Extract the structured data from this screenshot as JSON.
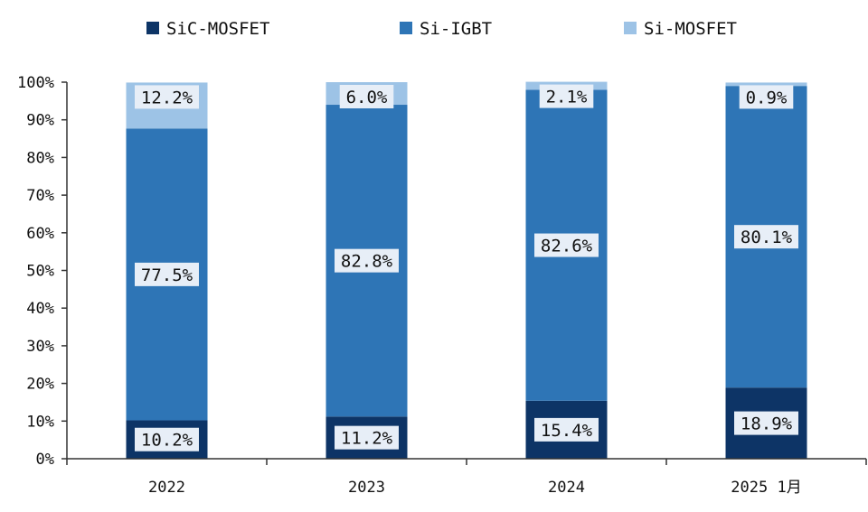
{
  "chart_data": {
    "type": "bar",
    "stacked": true,
    "categories": [
      "2022",
      "2023",
      "2024",
      "2025 1月"
    ],
    "series": [
      {
        "name": "SiC-MOSFET",
        "color": "#0d3466",
        "values": [
          10.2,
          11.2,
          15.4,
          18.9
        ],
        "labels": [
          "10.2%",
          "11.2%",
          "15.4%",
          "18.9%"
        ]
      },
      {
        "name": "Si-IGBT",
        "color": "#2e75b6",
        "values": [
          77.5,
          82.8,
          82.6,
          80.1
        ],
        "labels": [
          "77.5%",
          "82.8%",
          "82.6%",
          "80.1%"
        ]
      },
      {
        "name": "Si-MOSFET",
        "color": "#9dc3e6",
        "values": [
          12.2,
          6.0,
          2.1,
          0.9
        ],
        "labels": [
          "12.2%",
          "6.0%",
          "2.1%",
          "0.9%"
        ]
      }
    ],
    "y_ticks": [
      "0%",
      "10%",
      "20%",
      "30%",
      "40%",
      "50%",
      "60%",
      "70%",
      "80%",
      "90%",
      "100%"
    ],
    "ylim": [
      0,
      100
    ],
    "legend_position": "top",
    "grid": false
  }
}
